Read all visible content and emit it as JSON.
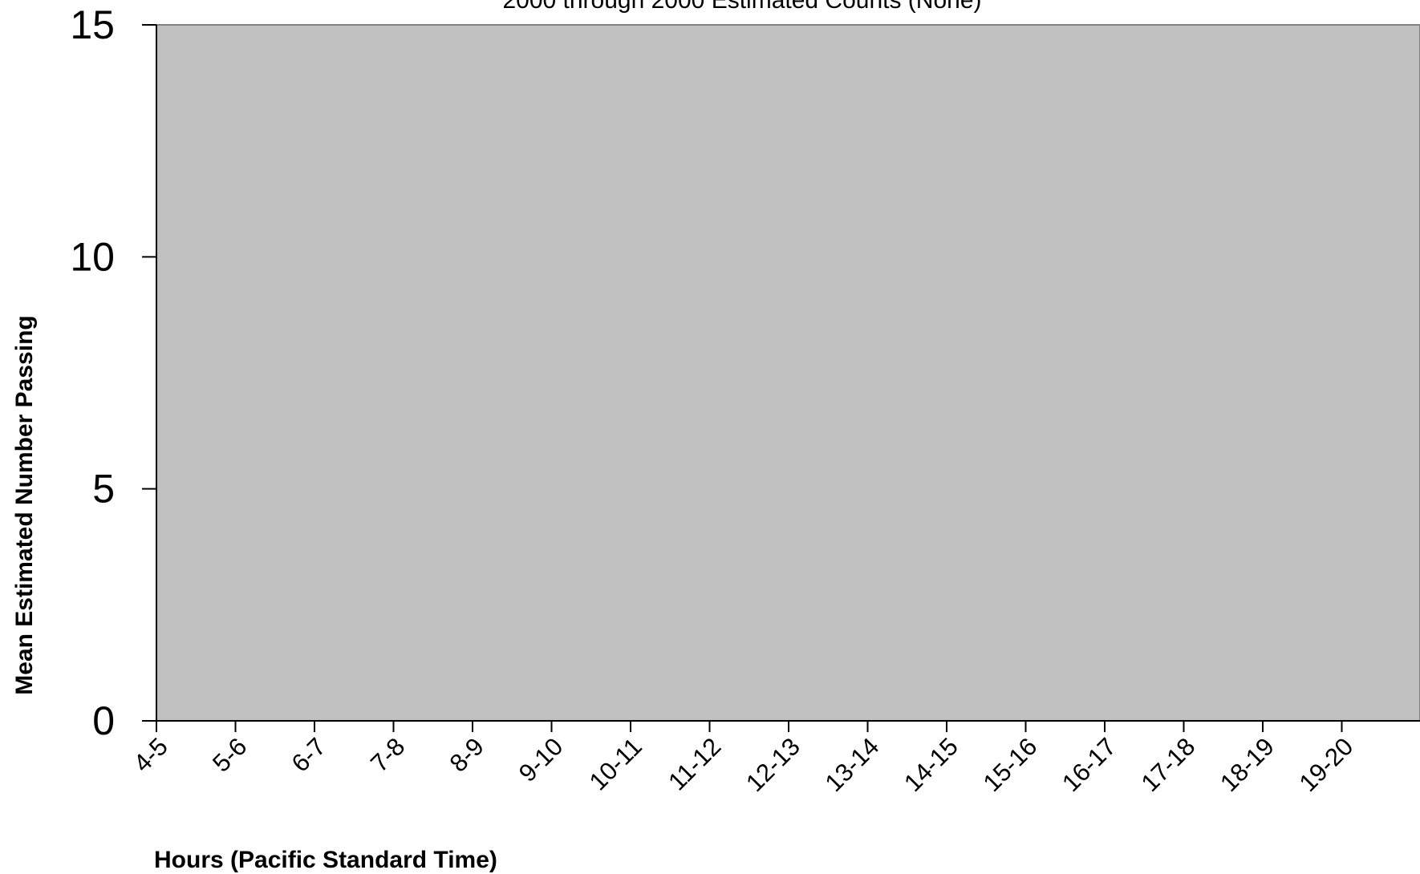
{
  "chart_data": {
    "type": "bar",
    "title": "2000 through 2000 Estimated Counts (None)",
    "xlabel": "Hours (Pacific Standard Time)",
    "ylabel": "Mean Estimated Number Passing",
    "ylim": [
      0,
      15
    ],
    "yticks": [
      "0",
      "5",
      "10",
      "15"
    ],
    "categories": [
      "4-5",
      "5-6",
      "6-7",
      "7-8",
      "8-9",
      "9-10",
      "10-11",
      "11-12",
      "12-13",
      "13-14",
      "14-15",
      "15-16",
      "16-17",
      "17-18",
      "18-19",
      "19-20"
    ],
    "series": [
      {
        "values": [
          0,
          0,
          0,
          0,
          0,
          0,
          0,
          0,
          0,
          0,
          0,
          0,
          0,
          0,
          0,
          0
        ]
      }
    ],
    "grid": false,
    "plot_background": "#c0c0c0",
    "bar_color": "#000000"
  }
}
